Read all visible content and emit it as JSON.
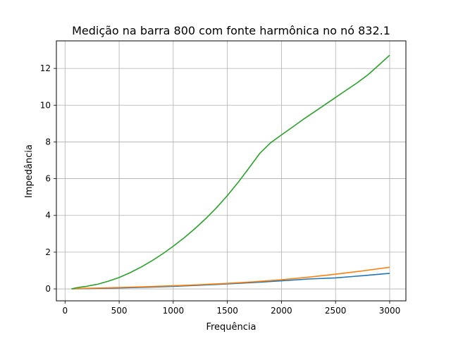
{
  "chart_data": {
    "type": "line",
    "title": "Medição na barra 800 com fonte harmônica no nó 832.1",
    "xlabel": "Frequência",
    "ylabel": "Impedância",
    "xlim": [
      -80,
      3150
    ],
    "ylim": [
      -0.65,
      13.5
    ],
    "xticks": [
      0,
      500,
      1000,
      1500,
      2000,
      2500,
      3000
    ],
    "yticks": [
      0,
      2,
      4,
      6,
      8,
      10,
      12
    ],
    "grid": true,
    "colors": {
      "series1": "#1f77b4",
      "series2": "#ff7f0e",
      "series3": "#2ca02c"
    },
    "series": [
      {
        "x": [
          60,
          250,
          500,
          750,
          1000,
          1250,
          1500,
          1750,
          2000,
          2250,
          2500,
          2750,
          3000
        ],
        "values": [
          0.0,
          0.02,
          0.05,
          0.09,
          0.14,
          0.2,
          0.27,
          0.35,
          0.44,
          0.54,
          0.6,
          0.72,
          0.85
        ]
      },
      {
        "x": [
          60,
          250,
          500,
          750,
          1000,
          1250,
          1500,
          1750,
          2000,
          2250,
          2500,
          2750,
          3000
        ],
        "values": [
          0.0,
          0.04,
          0.08,
          0.12,
          0.17,
          0.23,
          0.3,
          0.39,
          0.5,
          0.64,
          0.8,
          0.98,
          1.18
        ]
      },
      {
        "x": [
          60,
          100,
          150,
          200,
          250,
          300,
          400,
          500,
          600,
          700,
          800,
          900,
          1000,
          1100,
          1200,
          1300,
          1400,
          1500,
          1600,
          1700,
          1800,
          1900,
          2000,
          2100,
          2200,
          2300,
          2400,
          2500,
          2600,
          2700,
          2800,
          2900,
          3000
        ],
        "values": [
          0.0,
          0.05,
          0.1,
          0.14,
          0.2,
          0.25,
          0.42,
          0.62,
          0.88,
          1.18,
          1.52,
          1.9,
          2.32,
          2.78,
          3.28,
          3.82,
          4.42,
          5.08,
          5.8,
          6.58,
          7.38,
          7.95,
          8.38,
          8.8,
          9.22,
          9.62,
          10.02,
          10.42,
          10.82,
          11.22,
          11.66,
          12.18,
          12.72
        ]
      }
    ]
  }
}
